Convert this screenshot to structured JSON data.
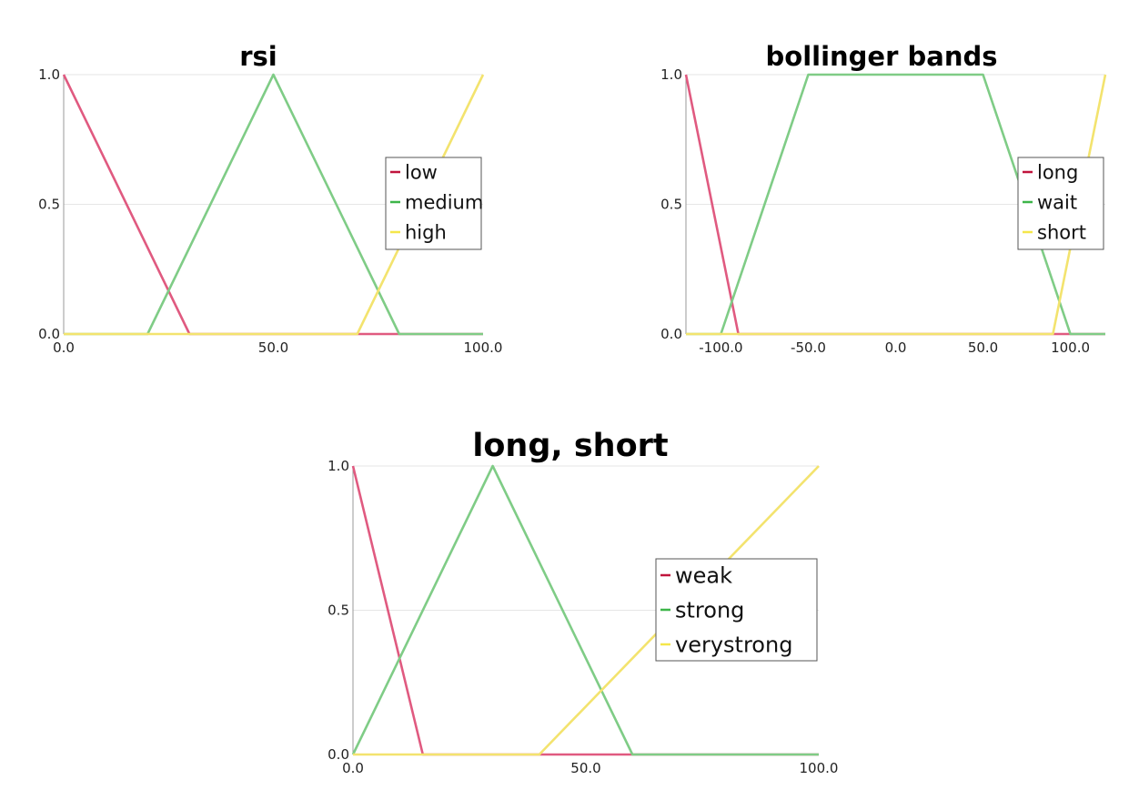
{
  "colors": {
    "red": "#e05a80",
    "green": "#7fcc86",
    "yellow": "#f3e36e",
    "legend_red": "#c0143c",
    "legend_green": "#3db549",
    "legend_yellow": "#f5e64a"
  },
  "chart_data": [
    {
      "type": "line",
      "title": "rsi",
      "xlim": [
        0,
        100
      ],
      "ylim": [
        0,
        1
      ],
      "x_ticks": [
        "0.0",
        "50.0",
        "100.0"
      ],
      "y_ticks": [
        "0.0",
        "0.5",
        "1.0"
      ],
      "legend_position": "right",
      "series": [
        {
          "name": "low",
          "color": "red",
          "points": [
            [
              0,
              1
            ],
            [
              30,
              0
            ],
            [
              100,
              0
            ]
          ]
        },
        {
          "name": "medium",
          "color": "green",
          "points": [
            [
              0,
              0
            ],
            [
              20,
              0
            ],
            [
              50,
              1
            ],
            [
              80,
              0
            ],
            [
              100,
              0
            ]
          ]
        },
        {
          "name": "high",
          "color": "yellow",
          "points": [
            [
              0,
              0
            ],
            [
              70,
              0
            ],
            [
              100,
              1
            ]
          ]
        }
      ]
    },
    {
      "type": "line",
      "title": "bollinger bands",
      "xlim": [
        -120,
        120
      ],
      "ylim": [
        0,
        1
      ],
      "x_ticks": [
        "-100.0",
        "-50.0",
        "0.0",
        "50.0",
        "100.0"
      ],
      "y_ticks": [
        "0.0",
        "0.5",
        "1.0"
      ],
      "legend_position": "right",
      "series": [
        {
          "name": "long",
          "color": "red",
          "points": [
            [
              -120,
              1
            ],
            [
              -90,
              0
            ],
            [
              120,
              0
            ]
          ]
        },
        {
          "name": "wait",
          "color": "green",
          "points": [
            [
              -120,
              0
            ],
            [
              -100,
              0
            ],
            [
              -50,
              1
            ],
            [
              50,
              1
            ],
            [
              100,
              0
            ],
            [
              120,
              0
            ]
          ]
        },
        {
          "name": "short",
          "color": "yellow",
          "points": [
            [
              -120,
              0
            ],
            [
              90,
              0
            ],
            [
              120,
              1
            ]
          ]
        }
      ]
    },
    {
      "type": "line",
      "title": "long, short",
      "xlim": [
        0,
        100
      ],
      "ylim": [
        0,
        1
      ],
      "x_ticks": [
        "0.0",
        "50.0",
        "100.0"
      ],
      "y_ticks": [
        "0.0",
        "0.5",
        "1.0"
      ],
      "legend_position": "right",
      "series": [
        {
          "name": "weak",
          "color": "red",
          "points": [
            [
              0,
              1
            ],
            [
              15,
              0
            ],
            [
              100,
              0
            ]
          ]
        },
        {
          "name": "strong",
          "color": "green",
          "points": [
            [
              0,
              0
            ],
            [
              30,
              1
            ],
            [
              60,
              0
            ],
            [
              100,
              0
            ]
          ]
        },
        {
          "name": "verystrong",
          "color": "yellow",
          "points": [
            [
              0,
              0
            ],
            [
              40,
              0
            ],
            [
              100,
              1
            ]
          ]
        }
      ]
    }
  ]
}
